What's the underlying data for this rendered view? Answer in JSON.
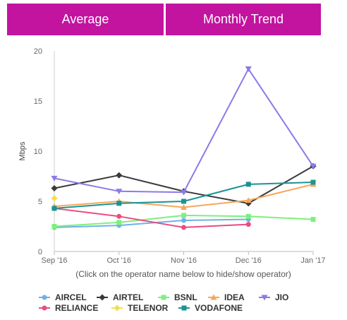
{
  "tabs": [
    {
      "label": "Average"
    },
    {
      "label": "Monthly Trend"
    }
  ],
  "hint": "(Click on the operator name below to hide/show operator)",
  "chart_data": {
    "type": "line",
    "categories": [
      "Sep '16",
      "Oct '16",
      "Nov '16",
      "Dec '16",
      "Jan '17"
    ],
    "ylabel": "Mbps",
    "ylim": [
      0,
      20
    ],
    "yticks": [
      "0",
      "5",
      "10",
      "15",
      "20"
    ],
    "grid": false,
    "legend_position": "bottom",
    "series": [
      {
        "name": "AIRCEL",
        "color": "#6fb1e8",
        "marker": "circle",
        "values": [
          2.4,
          2.6,
          3.1,
          3.2,
          null
        ]
      },
      {
        "name": "AIRTEL",
        "color": "#3a3a3a",
        "marker": "diamond",
        "values": [
          6.3,
          7.6,
          6.0,
          4.8,
          8.5
        ]
      },
      {
        "name": "BSNL",
        "color": "#7df07d",
        "marker": "square",
        "values": [
          2.5,
          2.9,
          3.6,
          3.5,
          3.2
        ]
      },
      {
        "name": "IDEA",
        "color": "#f5a85a",
        "marker": "triangle",
        "values": [
          4.5,
          5.0,
          4.4,
          5.1,
          6.7
        ]
      },
      {
        "name": "JIO",
        "color": "#8d79e8",
        "marker": "triangle-down",
        "values": [
          7.3,
          6.0,
          5.9,
          18.2,
          8.5
        ]
      },
      {
        "name": "RELIANCE",
        "color": "#ea4c7e",
        "marker": "circle",
        "values": [
          4.3,
          3.5,
          2.4,
          2.7,
          null
        ]
      },
      {
        "name": "TELENOR",
        "color": "#f0e050",
        "marker": "diamond",
        "values": [
          5.3,
          null,
          null,
          null,
          null
        ]
      },
      {
        "name": "VODAFONE",
        "color": "#1a9494",
        "marker": "square",
        "values": [
          4.3,
          4.8,
          5.0,
          6.7,
          6.9
        ]
      }
    ]
  }
}
